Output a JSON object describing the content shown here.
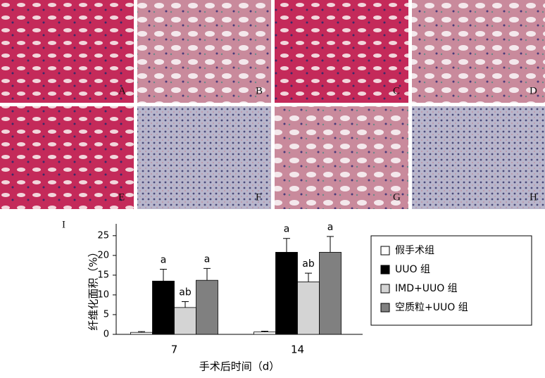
{
  "panel_labels": [
    "A",
    "B",
    "C",
    "D",
    "E",
    "F",
    "G",
    "H"
  ],
  "chart_panel_label": "I",
  "chart_data": {
    "type": "bar",
    "xlabel": "手术后时间（d）",
    "ylabel": "纤维化面积（%）",
    "categories": [
      "7",
      "14"
    ],
    "ylim": [
      0,
      28
    ],
    "yticks": [
      0,
      5,
      10,
      15,
      20,
      25
    ],
    "legend": "right",
    "series": [
      {
        "name": "假手术组",
        "color": "#ffffff",
        "values": [
          0.5,
          0.6
        ],
        "errors": [
          0.2,
          0.2
        ]
      },
      {
        "name": "UUO 组",
        "color": "#000000",
        "values": [
          13.5,
          20.8
        ],
        "errors": [
          3.0,
          3.5
        ],
        "annotations": [
          "a",
          "a"
        ]
      },
      {
        "name": "IMD+UUO 组",
        "color": "#d4d4d4",
        "values": [
          6.8,
          13.3
        ],
        "errors": [
          1.5,
          2.2
        ],
        "annotations": [
          "ab",
          "ab"
        ]
      },
      {
        "name": "空质粒+UUO 组",
        "color": "#808080",
        "values": [
          13.7,
          20.8
        ],
        "errors": [
          3.0,
          4.0
        ],
        "annotations": [
          "a",
          "a"
        ]
      }
    ]
  }
}
